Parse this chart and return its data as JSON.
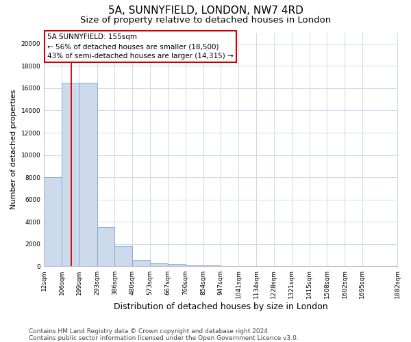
{
  "title": "5A, SUNNYFIELD, LONDON, NW7 4RD",
  "subtitle": "Size of property relative to detached houses in London",
  "xlabel": "Distribution of detached houses by size in London",
  "ylabel": "Number of detached properties",
  "bar_values": [
    8000,
    16500,
    16500,
    3500,
    1800,
    600,
    300,
    200,
    100,
    80,
    0,
    0,
    0,
    0,
    0,
    0,
    0,
    0,
    0
  ],
  "bin_edges": [
    12,
    106,
    199,
    293,
    386,
    480,
    573,
    667,
    760,
    854,
    947,
    1041,
    1134,
    1228,
    1321,
    1415,
    1508,
    1602,
    1695,
    1882
  ],
  "bar_color": "#ccdaeb",
  "bar_edge_color": "#7aaac8",
  "property_line_x": 155,
  "property_line_color": "#cc0000",
  "annotation_text": "5A SUNNYFIELD: 155sqm\n← 56% of detached houses are smaller (18,500)\n43% of semi-detached houses are larger (14,315) →",
  "annotation_box_facecolor": "#ffffff",
  "annotation_box_edgecolor": "#cc0000",
  "ylim_max": 21000,
  "yticks": [
    0,
    2000,
    4000,
    6000,
    8000,
    10000,
    12000,
    14000,
    16000,
    18000,
    20000
  ],
  "tick_labels": [
    "12sqm",
    "106sqm",
    "199sqm",
    "293sqm",
    "386sqm",
    "480sqm",
    "573sqm",
    "667sqm",
    "760sqm",
    "854sqm",
    "947sqm",
    "1041sqm",
    "1134sqm",
    "1228sqm",
    "1321sqm",
    "1415sqm",
    "1508sqm",
    "1602sqm",
    "1695sqm",
    "1882sqm"
  ],
  "grid_color": "#ced8e8",
  "footer_text": "Contains HM Land Registry data © Crown copyright and database right 2024.\nContains public sector information licensed under the Open Government Licence v3.0.",
  "title_fontsize": 11,
  "subtitle_fontsize": 9.5,
  "xlabel_fontsize": 9,
  "ylabel_fontsize": 8,
  "tick_fontsize": 6.5,
  "footer_fontsize": 6.5,
  "ann_fontsize": 7.5
}
